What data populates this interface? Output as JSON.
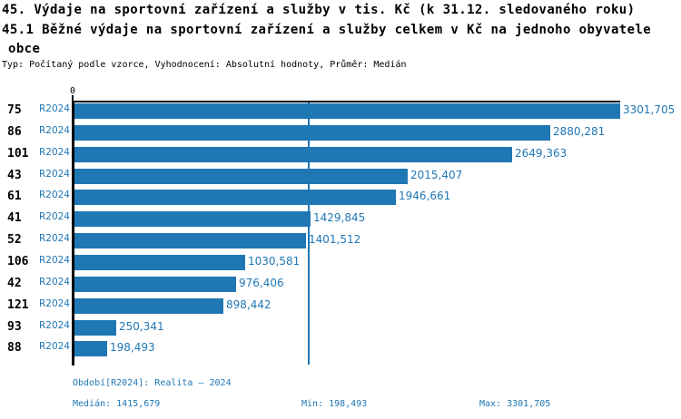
{
  "header": {
    "title_line1": "45. Výdaje na sportovní zařízení a služby v tis. Kč (k 31.12. sledovaného roku)",
    "title_line2": "45.1 Běžné výdaje na sportovní zařízení a služby celkem v Kč na jednoho obyvatele",
    "title_line3": "obce",
    "meta_line": "Typ: Počítaný podle vzorce, Vyhodnocení: Absolutní hodnoty, Průměr: Medián"
  },
  "colors": {
    "accent": "#1f77b4",
    "axis": "#000000",
    "background": "#ffffff"
  },
  "chart_data": {
    "type": "bar",
    "orientation": "horizontal",
    "title": "45. Výdaje na sportovní zařízení a služby v tis. Kč (k 31.12. sledovaného roku)",
    "subtitle": "45.1 Běžné výdaje na sportovní zařízení a služby celkem v Kč na jednoho obyvatele obce",
    "series_label": "R2024",
    "x_origin_label": "0",
    "categories": [
      "75",
      "86",
      "101",
      "43",
      "61",
      "41",
      "52",
      "106",
      "42",
      "121",
      "93",
      "88"
    ],
    "values": [
      3301.705,
      2880.281,
      2649.363,
      2015.407,
      1946.661,
      1429.845,
      1401.512,
      1030.581,
      976.406,
      898.442,
      250.341,
      198.493
    ],
    "value_labels": [
      "3301,705",
      "2880,281",
      "2649,363",
      "2015,407",
      "1946,661",
      "1429,845",
      "1401,512",
      "1030,581",
      "976,406",
      "898,442",
      "250,341",
      "198,493"
    ],
    "xlim": [
      0,
      3301.705
    ],
    "median": 1415.679,
    "min": 198.493,
    "max": 3301.705,
    "median_line": true,
    "grid": false,
    "legend": "none",
    "xlabel": "",
    "ylabel": ""
  },
  "footer": {
    "period_label": "Období[R2024]: Realita – 2024",
    "median_label": "Medián: 1415,679",
    "min_label": "Min: 198,493",
    "max_label": "Max: 3301,705"
  }
}
